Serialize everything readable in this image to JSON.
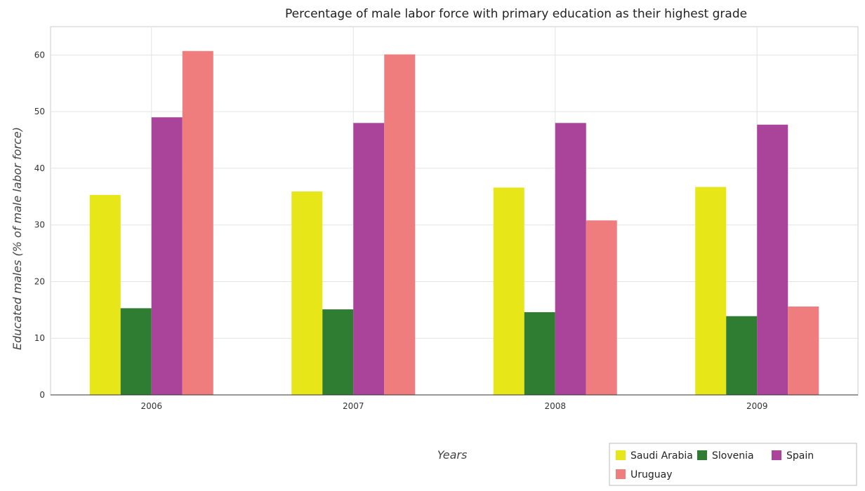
{
  "chart_data": {
    "type": "bar",
    "title": "Percentage of male labor force with primary education as their highest grade",
    "xlabel": "Years",
    "ylabel": "Educated males (% of male labor force)",
    "categories": [
      "2006",
      "2007",
      "2008",
      "2009"
    ],
    "ylim": [
      0,
      65
    ],
    "yticks": [
      0,
      10,
      20,
      30,
      40,
      50,
      60
    ],
    "grid": true,
    "legend_position": "bottom-right",
    "series": [
      {
        "name": "Saudi Arabia",
        "color": "#e6e619",
        "values": [
          35.3,
          35.9,
          36.6,
          36.7
        ]
      },
      {
        "name": "Slovenia",
        "color": "#2e7d32",
        "values": [
          15.3,
          15.1,
          14.6,
          13.9
        ]
      },
      {
        "name": "Spain",
        "color": "#a9449a",
        "values": [
          49.0,
          48.0,
          48.0,
          47.7
        ]
      },
      {
        "name": "Uruguay",
        "color": "#f07d7d",
        "values": [
          60.7,
          60.1,
          30.8,
          15.6
        ]
      }
    ]
  }
}
